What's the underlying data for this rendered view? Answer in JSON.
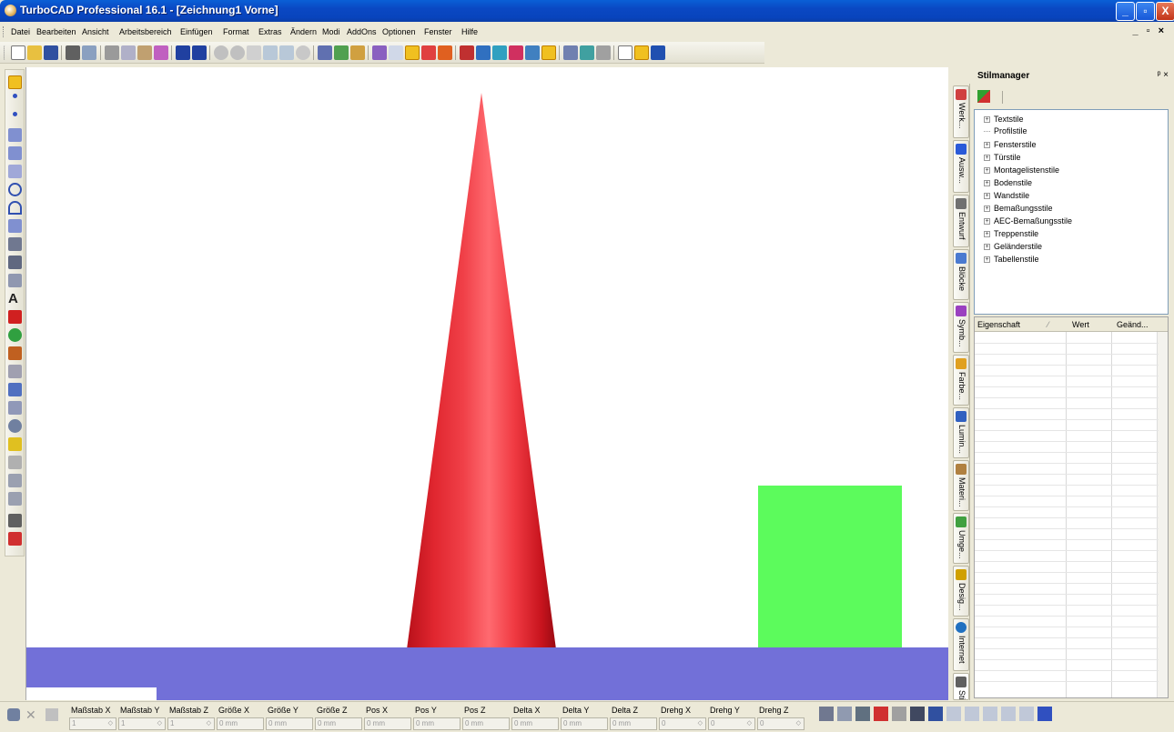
{
  "window": {
    "title": "TurboCAD Professional 16.1 - [Zeichnung1 Vorne]",
    "buttons": [
      "_",
      "▫",
      "X"
    ],
    "doc_controls": "_ ▫ ×"
  },
  "menubar": {
    "items": [
      "Datei",
      "Bearbeiten",
      "Ansicht",
      "Arbeitsbereich",
      "Einfügen",
      "Format",
      "Extras",
      "Ändern",
      "Modi",
      "AddOns",
      "Optionen",
      "Fenster",
      "Hilfe"
    ]
  },
  "toolbar": {
    "icons": [
      "new-icon",
      "open-icon",
      "save-icon",
      "print-icon",
      "print-preview-icon",
      "cut-icon",
      "copy-icon",
      "paste-icon",
      "match-props-icon",
      "undo-icon",
      "redo-icon",
      "zoom-in-icon",
      "zoom-out-icon",
      "zoom-window-icon",
      "zoom-extents-icon",
      "zoom-all-icon",
      "zoom-previous-icon",
      "layers-icon",
      "styles-icon",
      "brush-icon",
      "snap-icon",
      "grid-icon",
      "ortho-icon",
      "snap-toggle-icon",
      "polar-icon",
      "layer-manager-icon",
      "block-icon",
      "explode-icon",
      "render-icon",
      "camera-icon",
      "design-director-icon",
      "properties-icon",
      "tool-palette-icon",
      "ucs-icon",
      "new-sheet-icon",
      "model-space-icon",
      "help-pointer-icon"
    ]
  },
  "left_tools": {
    "icons": [
      "select-icon",
      "point-icon",
      "point2-icon",
      "line-icon",
      "multiline-icon",
      "parallel-line-icon",
      "circle-icon",
      "arc-icon",
      "curve-icon",
      "polygon-icon",
      "box3d-icon",
      "move-icon",
      "text-icon",
      "insert-block-icon",
      "symbol-icon",
      "group-icon",
      "node-edit-icon",
      "dimension-icon",
      "construction-icon",
      "fillet-icon",
      "chamfer-icon",
      "trim-icon",
      "extend-icon",
      "array-icon",
      "copy-tool-icon",
      "mirror-icon",
      "measure-icon"
    ]
  },
  "viewport": {
    "colors": {
      "background": "#ffffff",
      "ground": "#7270d8",
      "green_box": "#5cfb5c",
      "cone": "#e8262e"
    }
  },
  "stilmanager": {
    "title": "Stilmanager",
    "header_controls": "ᵖ ×",
    "tree": [
      {
        "label": "Textstile",
        "expandable": true
      },
      {
        "label": "Profilstile",
        "expandable": false
      },
      {
        "label": "Fensterstile",
        "expandable": true
      },
      {
        "label": "Türstile",
        "expandable": true
      },
      {
        "label": "Montagelistenstile",
        "expandable": true
      },
      {
        "label": "Bodenstile",
        "expandable": true
      },
      {
        "label": "Wandstile",
        "expandable": true
      },
      {
        "label": "Bemaßungsstile",
        "expandable": true
      },
      {
        "label": "AEC-Bemaßungsstile",
        "expandable": true
      },
      {
        "label": "Treppenstile",
        "expandable": true
      },
      {
        "label": "Geländerstile",
        "expandable": true
      },
      {
        "label": "Tabellenstile",
        "expandable": true
      }
    ],
    "columns": [
      "Eigenschaft",
      "Wert",
      "Geänd..."
    ]
  },
  "side_tabs": [
    {
      "label": "Werk...",
      "icon": "toolbox-icon",
      "color": "#d04040"
    },
    {
      "label": "Ausw...",
      "icon": "select-cursor-icon",
      "color": "#2a5ad8"
    },
    {
      "label": "Entwurf",
      "icon": "draft-icon",
      "color": "#707070"
    },
    {
      "label": "Blöcke",
      "icon": "blocks-icon",
      "color": "#4a7ad0"
    },
    {
      "label": "Symb...",
      "icon": "symbols-icon",
      "color": "#9a40c0"
    },
    {
      "label": "Farbe...",
      "icon": "palette-icon",
      "color": "#e0a020"
    },
    {
      "label": "Lumin...",
      "icon": "luminance-icon",
      "color": "#3060c0"
    },
    {
      "label": "Materi...",
      "icon": "materials-icon",
      "color": "#b08040"
    },
    {
      "label": "Umge...",
      "icon": "environment-icon",
      "color": "#40a040"
    },
    {
      "label": "Desig...",
      "icon": "design-icon",
      "color": "#d0a000"
    },
    {
      "label": "Internet",
      "icon": "globe-icon",
      "color": "#2070c0"
    },
    {
      "label": "Stilma...",
      "icon": "style-manager-icon",
      "color": "#606060"
    }
  ],
  "statusbar": {
    "fields": [
      {
        "label": "Maßstab X",
        "value": "1"
      },
      {
        "label": "Maßstab Y",
        "value": "1"
      },
      {
        "label": "Maßstab Z",
        "value": "1"
      },
      {
        "label": "Größe X",
        "value": "0 mm"
      },
      {
        "label": "Größe Y",
        "value": "0 mm"
      },
      {
        "label": "Größe Z",
        "value": "0 mm"
      },
      {
        "label": "Pos X",
        "value": "0 mm"
      },
      {
        "label": "Pos Y",
        "value": "0 mm"
      },
      {
        "label": "Pos Z",
        "value": "0 mm"
      },
      {
        "label": "Delta X",
        "value": "0 mm"
      },
      {
        "label": "Delta Y",
        "value": "0 mm"
      },
      {
        "label": "Delta Z",
        "value": "0 mm"
      },
      {
        "label": "Drehg X",
        "value": "0"
      },
      {
        "label": "Drehg Y",
        "value": "0"
      },
      {
        "label": "Drehg Z",
        "value": "0"
      }
    ],
    "right_icons": [
      "snap-vertex-icon",
      "snap-middle-icon",
      "snap-center-icon",
      "snap-quadrant-icon",
      "snap-intersection-icon",
      "snap-tangent-icon",
      "snap-perpendicular-icon",
      "snap-grid-icon",
      "snap-align-icon",
      "snap-nearest-icon",
      "snap-percent-icon",
      "snap-fraction-icon",
      "snap-none-icon"
    ]
  }
}
